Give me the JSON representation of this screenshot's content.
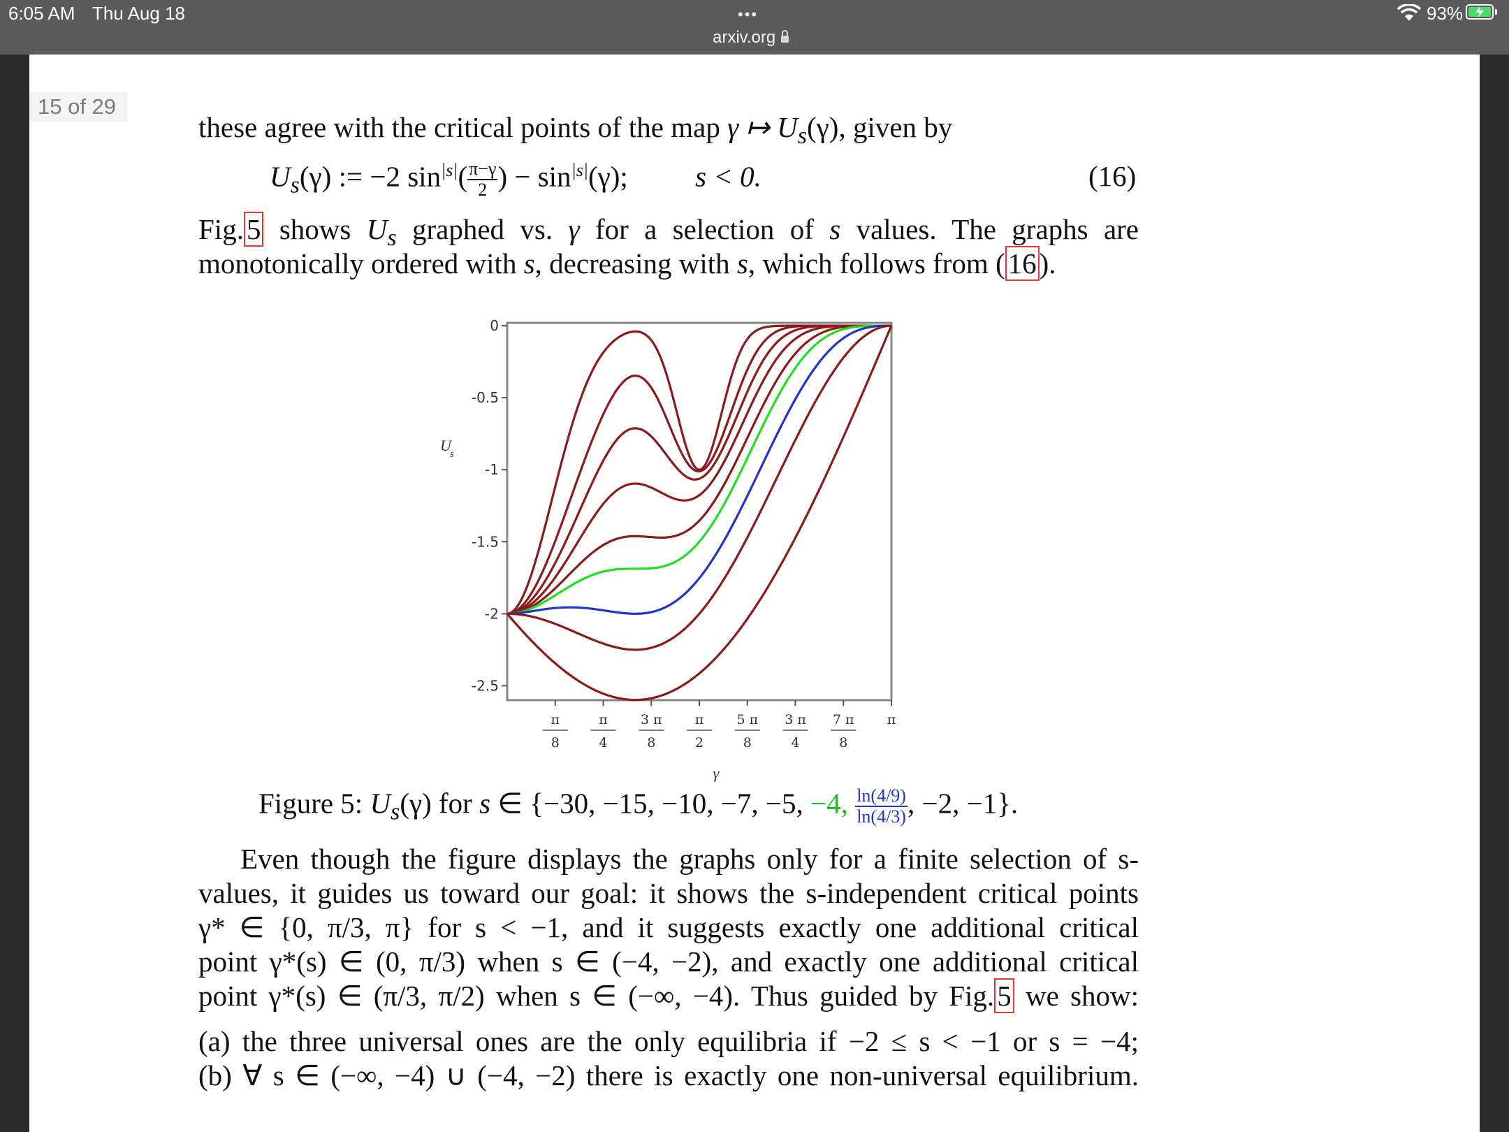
{
  "status_bar": {
    "time": "6:05 AM",
    "date": "Thu Aug 18",
    "dots": "•••",
    "url": "arxiv.org",
    "battery_pct": "93%",
    "wifi_icon": "wifi-icon",
    "lock_icon": "lock-icon",
    "battery_icon": "battery-charging-icon"
  },
  "viewer": {
    "page_counter": "15 of 29"
  },
  "text": {
    "p1": "these agree with the critical points of the map",
    "p1_map": "γ ↦ U",
    "p1_end": "(γ), given by",
    "eq_lhs": "U",
    "eq_body": "(γ) := −2 sin",
    "eq_sup": "|s|",
    "eq_frac_num": "π−γ",
    "eq_frac_den": "2",
    "eq_mid": ") − sin",
    "eq_end": "(γ);",
    "eq_cond": "s < 0.",
    "eq_number": "(16)",
    "p2a_1": "Fig.",
    "p2a_ref": "5",
    "p2a_2": "shows",
    "p2a_3": "graphed vs.",
    "p2a_4": "for a selection of",
    "p2a_5": "values. The graphs are",
    "p2b_1": "monotonically ordered with",
    "p2b_2": ", decreasing with",
    "p2b_3": ", which follows from",
    "p2b_ref": "16",
    "caption_1": "Figure 5:",
    "caption_2": "(γ) for",
    "caption_3": "∈ {−30, −15, −10, −7, −5,",
    "caption_green": "−4,",
    "caption_frac_num": "ln(4/9)",
    "caption_frac_den": "ln(4/3)",
    "caption_4": ", −2, −1}.",
    "p3_l1": "Even though the figure displays the graphs only for a finite selection of s-",
    "p3_l2": "values, it guides us toward our goal: it shows the s-independent critical points",
    "p3_l3": "γ* ∈ {0, π/3, π} for s < −1, and it suggests exactly one additional critical",
    "p3_l4": "point γ*(s) ∈ (0, π/3) when s ∈ (−4, −2), and exactly one additional critical",
    "p3_l5a": "point γ*(s) ∈ (π/3, π/2) when s ∈ (−∞, −4). Thus guided by Fig.",
    "p3_l5ref": "5",
    "p3_l5b": "we show:",
    "p4_l1": "(a) the three universal ones are the only equilibria if −2 ≤ s < −1 or s = −4;",
    "p4_l2": "(b) ∀ s ∈ (−∞, −4) ∪ (−4, −2) there is exactly one non-universal equilibrium."
  },
  "chart_data": {
    "type": "line",
    "function": "U_s(γ) = −2 sin^|s|((π−γ)/2) − sin^|s|(γ)",
    "x_domain": [
      0,
      3.14159
    ],
    "ylabel": "U",
    "ylabel_sub": "s",
    "xlabel": "γ",
    "ylim": [
      -2.6,
      0.02
    ],
    "yticks": [
      {
        "value": 0,
        "label": "0"
      },
      {
        "value": -0.5,
        "label": "-0.5"
      },
      {
        "value": -1,
        "label": "-1"
      },
      {
        "value": -1.5,
        "label": "-1.5"
      },
      {
        "value": -2,
        "label": "-2"
      },
      {
        "value": -2.5,
        "label": "-2.5"
      }
    ],
    "xticks": [
      {
        "value": 0.3927,
        "num": "π",
        "den": "8"
      },
      {
        "value": 0.7854,
        "num": "π",
        "den": "4"
      },
      {
        "value": 1.1781,
        "num": "3 π",
        "den": "8"
      },
      {
        "value": 1.5708,
        "num": "π",
        "den": "2"
      },
      {
        "value": 1.9635,
        "num": "5 π",
        "den": "8"
      },
      {
        "value": 2.3562,
        "num": "3 π",
        "den": "4"
      },
      {
        "value": 2.7489,
        "num": "7 π",
        "den": "8"
      },
      {
        "value": 3.1416,
        "num": "π",
        "den": ""
      }
    ],
    "series": [
      {
        "s": -30,
        "color": "#8b1a1a"
      },
      {
        "s": -15,
        "color": "#8b1a1a"
      },
      {
        "s": -10,
        "color": "#8b1a1a"
      },
      {
        "s": -7,
        "color": "#8b1a1a"
      },
      {
        "s": -5,
        "color": "#8b1a1a"
      },
      {
        "s": -4,
        "color": "#22dd22"
      },
      {
        "s": -2.8188,
        "color": "#2233cc"
      },
      {
        "s": -2,
        "color": "#8b1a1a"
      },
      {
        "s": -1,
        "color": "#8b1a1a"
      }
    ]
  }
}
